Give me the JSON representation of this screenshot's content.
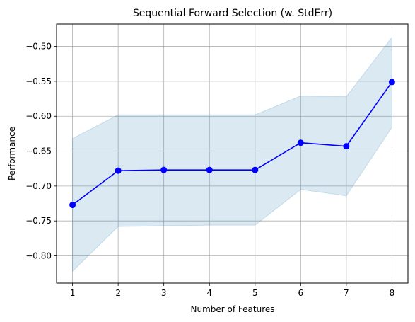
{
  "chart_data": {
    "type": "line",
    "title": "Sequential Forward Selection (w. StdErr)",
    "xlabel": "Number of Features",
    "ylabel": "Performance",
    "x": [
      1,
      2,
      3,
      4,
      5,
      6,
      7,
      8
    ],
    "xticks": [
      "1",
      "2",
      "3",
      "4",
      "5",
      "6",
      "7",
      "8"
    ],
    "xlim": [
      0.65,
      8.35
    ],
    "ylim": [
      -0.839,
      -0.468
    ],
    "yticks": [
      -0.8,
      -0.75,
      -0.7,
      -0.65,
      -0.6,
      -0.55,
      -0.5
    ],
    "ytick_labels": [
      "−0.80",
      "−0.75",
      "−0.70",
      "−0.65",
      "−0.60",
      "−0.55",
      "−0.50"
    ],
    "grid": true,
    "series": [
      {
        "values": [
          -0.727,
          -0.678,
          -0.677,
          -0.677,
          -0.677,
          -0.638,
          -0.643,
          -0.551
        ],
        "upper": [
          -0.632,
          -0.598,
          -0.598,
          -0.598,
          -0.598,
          -0.571,
          -0.572,
          -0.487
        ],
        "lower": [
          -0.822,
          -0.758,
          -0.757,
          -0.756,
          -0.756,
          -0.705,
          -0.714,
          -0.616
        ],
        "color": "#0000ff",
        "band_color": "#1f77b4"
      }
    ]
  }
}
